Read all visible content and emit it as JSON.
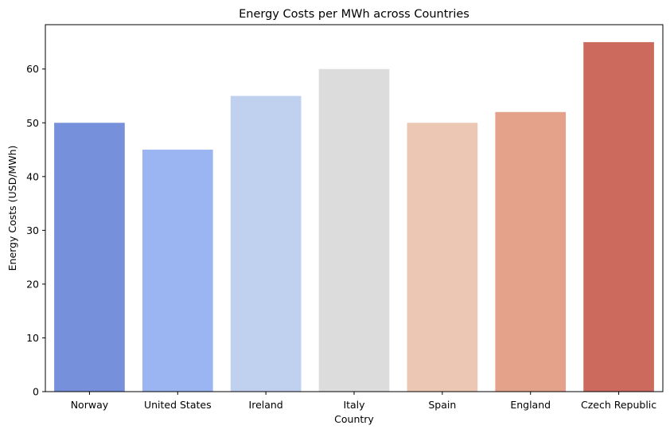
{
  "chart_data": {
    "type": "bar",
    "title": "Energy Costs per MWh across Countries",
    "xlabel": "Country",
    "ylabel": "Energy Costs (USD/MWh)",
    "categories": [
      "Norway",
      "United States",
      "Ireland",
      "Italy",
      "Spain",
      "England",
      "Czech Republic"
    ],
    "values": [
      50,
      45,
      55,
      60,
      50,
      52,
      65
    ],
    "colors": [
      "#7790dc",
      "#9ab5f1",
      "#c0d1f0",
      "#dddcdc",
      "#ecc7b4",
      "#e4a28a",
      "#cc6a5e"
    ],
    "ylim": [
      0,
      68.25
    ],
    "yticks": [
      0,
      10,
      20,
      30,
      40,
      50,
      60
    ],
    "grid": false,
    "legend": false
  }
}
